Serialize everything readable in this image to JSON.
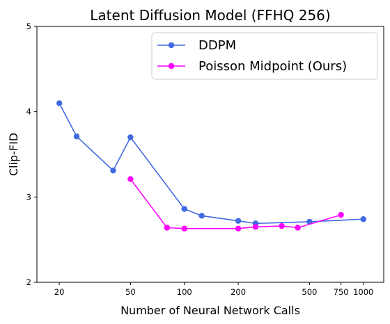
{
  "chart_data": {
    "type": "line",
    "title": "Latent Diffusion Model (FFHQ 256)",
    "xlabel": "Number of Neural Network Calls",
    "ylabel": "Clip-FID",
    "xscale": "log",
    "xlim": [
      15,
      1300
    ],
    "ylim": [
      2,
      5
    ],
    "xticks": [
      20,
      50,
      100,
      200,
      500,
      750,
      1000
    ],
    "xtick_labels": [
      "20",
      "50",
      "100",
      "200",
      "500",
      "750",
      "1000"
    ],
    "yticks": [
      2,
      3,
      4,
      5
    ],
    "ytick_labels": [
      "2",
      "3",
      "4",
      "5"
    ],
    "grid": false,
    "legend_position": "top-right",
    "series": [
      {
        "name": "DDPM",
        "color": "#4169e1",
        "x": [
          20,
          25,
          40,
          50,
          100,
          125,
          200,
          250,
          500,
          1000
        ],
        "y": [
          4.1,
          3.71,
          3.31,
          3.7,
          2.86,
          2.78,
          2.72,
          2.69,
          2.71,
          2.74
        ]
      },
      {
        "name": "Poisson Midpoint (Ours)",
        "color": "#ff00ff",
        "x": [
          50,
          80,
          100,
          200,
          250,
          350,
          430,
          750
        ],
        "y": [
          3.21,
          2.64,
          2.63,
          2.63,
          2.65,
          2.66,
          2.64,
          2.79
        ]
      }
    ]
  }
}
